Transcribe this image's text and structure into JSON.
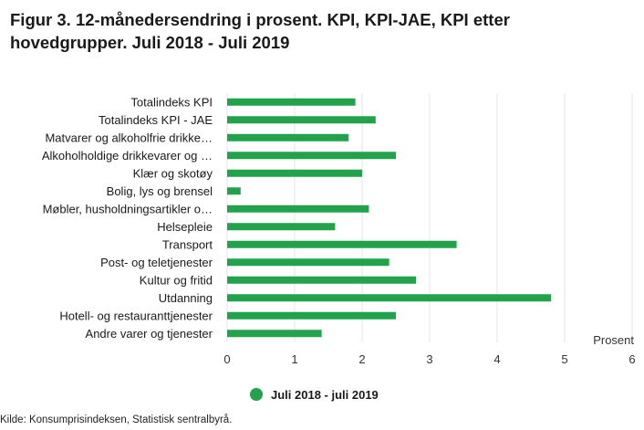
{
  "title": "Figur 3. 12-månedersendring i prosent. KPI, KPI-JAE, KPI etter hovedgrupper. Juli 2018 - Juli 2019",
  "source": "Kilde: Konsumprisindeksen, Statistisk sentralbyrå.",
  "colors": {
    "bar": "#22a24a",
    "grid": "#e6e6e6",
    "axis_text": "#333333"
  },
  "chart_data": {
    "type": "bar",
    "orientation": "horizontal",
    "categories": [
      "Totalindeks KPI",
      "Totalindeks KPI - JAE",
      "Matvarer og alkoholfrie drikke…",
      "Alkoholholdige drikkevarer og …",
      "Klær og skotøy",
      "Bolig, lys og brensel",
      "Møbler, husholdningsartikler o…",
      "Helsepleie",
      "Transport",
      "Post- og teletjenester",
      "Kultur og fritid",
      "Utdanning",
      "Hotell- og restauranttjenester",
      "Andre varer og tjenester"
    ],
    "series": [
      {
        "name": "Juli 2018 - juli 2019",
        "values": [
          1.9,
          2.2,
          1.8,
          2.5,
          2.0,
          0.2,
          2.1,
          1.6,
          3.4,
          2.4,
          2.8,
          4.8,
          2.5,
          1.4
        ]
      }
    ],
    "xlabel": "Prosent",
    "ylabel": "",
    "xlim": [
      0,
      6
    ],
    "xticks": [
      "0",
      "1",
      "2",
      "3",
      "4",
      "5",
      "6"
    ],
    "grid": true,
    "legend_position": "bottom"
  }
}
